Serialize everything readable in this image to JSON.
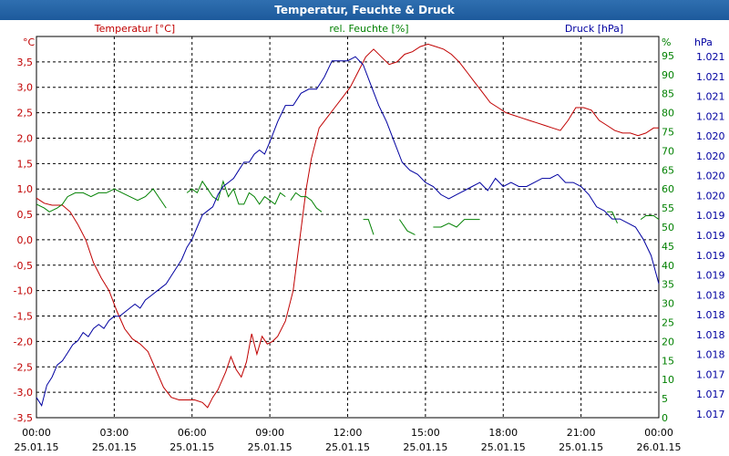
{
  "window": {
    "title": "Temperatur, Feuchte & Druck"
  },
  "colors": {
    "temperature": "#c00000",
    "humidity": "#008000",
    "pressure": "#0000a0",
    "grid": "#000000"
  },
  "chart_data": {
    "type": "line",
    "title": "Temperatur, Feuchte & Druck",
    "x_range_hours": [
      0,
      24
    ],
    "x_ticks": [
      {
        "h": 0,
        "time": "00:00",
        "date": "25.01.15"
      },
      {
        "h": 3,
        "time": "03:00",
        "date": "25.01.15"
      },
      {
        "h": 6,
        "time": "06:00",
        "date": "25.01.15"
      },
      {
        "h": 9,
        "time": "09:00",
        "date": "25.01.15"
      },
      {
        "h": 12,
        "time": "12:00",
        "date": "25.01.15"
      },
      {
        "h": 15,
        "time": "15:00",
        "date": "25.01.15"
      },
      {
        "h": 18,
        "time": "18:00",
        "date": "25.01.15"
      },
      {
        "h": 21,
        "time": "21:00",
        "date": "25.01.15"
      },
      {
        "h": 24,
        "time": "00:00",
        "date": "26.01.15"
      }
    ],
    "axes": {
      "temperature": {
        "unit": "°C",
        "label": "Temperatur [°C]",
        "range": [
          -3.5,
          4.0
        ],
        "ticks": [
          "-3,5",
          "-3,0",
          "-2,5",
          "-2,0",
          "-1,5",
          "-1,0",
          "-0,5",
          "0,0",
          "0,5",
          "1,0",
          "1,5",
          "2,0",
          "2,5",
          "3,0",
          "3,5"
        ]
      },
      "humidity": {
        "unit": "%",
        "label": "rel. Feuchte [%]",
        "range": [
          0,
          100
        ],
        "ticks": [
          "0",
          "5",
          "10",
          "15",
          "20",
          "25",
          "30",
          "35",
          "40",
          "45",
          "50",
          "55",
          "60",
          "65",
          "70",
          "75",
          "80",
          "85",
          "90",
          "95"
        ]
      },
      "pressure": {
        "unit": "hPa",
        "label": "Druck [hPa]",
        "range": [
          1016.7,
          1021.4
        ],
        "ticks": [
          "1.017",
          "1.017",
          "1.017",
          "1.018",
          "1.018",
          "1.018",
          "1.018",
          "1.019",
          "1.019",
          "1.019",
          "1.019",
          "1.020",
          "1.020",
          "1.020",
          "1.020",
          "1.021",
          "1.021",
          "1.021",
          "1.021"
        ]
      }
    },
    "series": [
      {
        "name": "Temperatur",
        "axis": "temperature",
        "points": [
          [
            0.0,
            0.82
          ],
          [
            0.3,
            0.72
          ],
          [
            0.6,
            0.68
          ],
          [
            1.0,
            0.68
          ],
          [
            1.3,
            0.55
          ],
          [
            1.6,
            0.3
          ],
          [
            1.9,
            0.0
          ],
          [
            2.2,
            -0.45
          ],
          [
            2.5,
            -0.75
          ],
          [
            2.8,
            -1.0
          ],
          [
            3.1,
            -1.4
          ],
          [
            3.4,
            -1.75
          ],
          [
            3.7,
            -1.95
          ],
          [
            4.0,
            -2.05
          ],
          [
            4.3,
            -2.2
          ],
          [
            4.6,
            -2.55
          ],
          [
            4.9,
            -2.9
          ],
          [
            5.2,
            -3.1
          ],
          [
            5.5,
            -3.15
          ],
          [
            5.8,
            -3.15
          ],
          [
            6.1,
            -3.15
          ],
          [
            6.4,
            -3.2
          ],
          [
            6.6,
            -3.3
          ],
          [
            6.8,
            -3.1
          ],
          [
            7.0,
            -2.95
          ],
          [
            7.3,
            -2.6
          ],
          [
            7.5,
            -2.3
          ],
          [
            7.7,
            -2.55
          ],
          [
            7.9,
            -2.7
          ],
          [
            8.1,
            -2.4
          ],
          [
            8.3,
            -1.85
          ],
          [
            8.5,
            -2.25
          ],
          [
            8.7,
            -1.9
          ],
          [
            8.9,
            -2.05
          ],
          [
            9.1,
            -2.0
          ],
          [
            9.3,
            -1.9
          ],
          [
            9.6,
            -1.6
          ],
          [
            9.9,
            -1.0
          ],
          [
            10.2,
            0.2
          ],
          [
            10.4,
            1.0
          ],
          [
            10.6,
            1.6
          ],
          [
            10.9,
            2.2
          ],
          [
            11.2,
            2.4
          ],
          [
            11.5,
            2.6
          ],
          [
            11.8,
            2.8
          ],
          [
            12.1,
            3.0
          ],
          [
            12.4,
            3.3
          ],
          [
            12.7,
            3.6
          ],
          [
            13.0,
            3.75
          ],
          [
            13.3,
            3.6
          ],
          [
            13.6,
            3.45
          ],
          [
            13.9,
            3.5
          ],
          [
            14.2,
            3.65
          ],
          [
            14.5,
            3.7
          ],
          [
            14.8,
            3.8
          ],
          [
            15.1,
            3.85
          ],
          [
            15.4,
            3.8
          ],
          [
            15.7,
            3.75
          ],
          [
            16.0,
            3.65
          ],
          [
            16.3,
            3.5
          ],
          [
            16.6,
            3.3
          ],
          [
            16.9,
            3.1
          ],
          [
            17.2,
            2.9
          ],
          [
            17.5,
            2.7
          ],
          [
            17.8,
            2.6
          ],
          [
            18.1,
            2.5
          ],
          [
            18.4,
            2.45
          ],
          [
            18.7,
            2.4
          ],
          [
            19.0,
            2.35
          ],
          [
            19.3,
            2.3
          ],
          [
            19.6,
            2.25
          ],
          [
            19.9,
            2.2
          ],
          [
            20.2,
            2.15
          ],
          [
            20.5,
            2.35
          ],
          [
            20.8,
            2.6
          ],
          [
            21.1,
            2.6
          ],
          [
            21.4,
            2.55
          ],
          [
            21.7,
            2.35
          ],
          [
            22.0,
            2.25
          ],
          [
            22.3,
            2.15
          ],
          [
            22.6,
            2.1
          ],
          [
            22.9,
            2.1
          ],
          [
            23.2,
            2.05
          ],
          [
            23.5,
            2.1
          ],
          [
            23.8,
            2.2
          ],
          [
            24.0,
            2.2
          ]
        ]
      },
      {
        "name": "rel. Feuchte",
        "axis": "humidity",
        "segments": [
          [
            [
              0.0,
              56
            ],
            [
              0.3,
              55
            ],
            [
              0.5,
              54
            ],
            [
              0.8,
              55
            ],
            [
              1.0,
              56
            ],
            [
              1.2,
              58
            ],
            [
              1.5,
              59
            ],
            [
              1.8,
              59
            ],
            [
              2.1,
              58
            ],
            [
              2.4,
              59
            ],
            [
              2.7,
              59
            ],
            [
              3.0,
              60
            ],
            [
              3.3,
              59
            ],
            [
              3.6,
              58
            ],
            [
              3.9,
              57
            ],
            [
              4.2,
              58
            ],
            [
              4.5,
              60
            ],
            [
              4.7,
              58
            ],
            [
              5.0,
              55
            ]
          ],
          [
            [
              5.8,
              59
            ],
            [
              6.0,
              60
            ],
            [
              6.2,
              59
            ],
            [
              6.4,
              62
            ],
            [
              6.6,
              60
            ],
            [
              6.8,
              58
            ],
            [
              7.0,
              57
            ],
            [
              7.2,
              62
            ],
            [
              7.4,
              58
            ],
            [
              7.6,
              60
            ],
            [
              7.8,
              56
            ],
            [
              8.0,
              56
            ],
            [
              8.2,
              59
            ],
            [
              8.4,
              58
            ],
            [
              8.6,
              56
            ],
            [
              8.8,
              58
            ],
            [
              9.0,
              57
            ],
            [
              9.2,
              56
            ],
            [
              9.4,
              59
            ],
            [
              9.6,
              58
            ]
          ],
          [
            [
              9.8,
              57
            ],
            [
              10.0,
              59
            ],
            [
              10.2,
              58
            ],
            [
              10.4,
              58
            ],
            [
              10.6,
              57
            ],
            [
              10.8,
              55
            ],
            [
              11.0,
              54
            ]
          ],
          [
            [
              12.6,
              52
            ],
            [
              12.8,
              52
            ],
            [
              13.0,
              48
            ]
          ],
          [
            [
              14.0,
              52
            ],
            [
              14.3,
              49
            ],
            [
              14.6,
              48
            ]
          ],
          [
            [
              15.3,
              50
            ],
            [
              15.6,
              50
            ],
            [
              15.9,
              51
            ],
            [
              16.2,
              50
            ],
            [
              16.5,
              52
            ],
            [
              16.8,
              52
            ],
            [
              17.1,
              52
            ]
          ],
          [
            [
              22.0,
              54
            ],
            [
              22.2,
              54
            ],
            [
              22.4,
              51
            ]
          ],
          [
            [
              23.3,
              52
            ],
            [
              23.5,
              53
            ],
            [
              23.8,
              53
            ],
            [
              24.0,
              52
            ]
          ]
        ]
      },
      {
        "name": "Druck",
        "axis": "pressure",
        "points": [
          [
            0.0,
            1016.95
          ],
          [
            0.2,
            1016.85
          ],
          [
            0.4,
            1017.1
          ],
          [
            0.6,
            1017.2
          ],
          [
            0.8,
            1017.35
          ],
          [
            1.0,
            1017.4
          ],
          [
            1.2,
            1017.5
          ],
          [
            1.4,
            1017.6
          ],
          [
            1.6,
            1017.65
          ],
          [
            1.8,
            1017.75
          ],
          [
            2.0,
            1017.7
          ],
          [
            2.2,
            1017.8
          ],
          [
            2.4,
            1017.85
          ],
          [
            2.6,
            1017.8
          ],
          [
            2.8,
            1017.9
          ],
          [
            3.0,
            1017.95
          ],
          [
            3.2,
            1017.95
          ],
          [
            3.4,
            1018.0
          ],
          [
            3.6,
            1018.05
          ],
          [
            3.8,
            1018.1
          ],
          [
            4.0,
            1018.05
          ],
          [
            4.2,
            1018.15
          ],
          [
            4.4,
            1018.2
          ],
          [
            4.6,
            1018.25
          ],
          [
            4.8,
            1018.3
          ],
          [
            5.0,
            1018.35
          ],
          [
            5.2,
            1018.45
          ],
          [
            5.4,
            1018.55
          ],
          [
            5.6,
            1018.65
          ],
          [
            5.8,
            1018.8
          ],
          [
            6.0,
            1018.9
          ],
          [
            6.2,
            1019.05
          ],
          [
            6.4,
            1019.2
          ],
          [
            6.6,
            1019.25
          ],
          [
            6.8,
            1019.3
          ],
          [
            7.0,
            1019.45
          ],
          [
            7.2,
            1019.55
          ],
          [
            7.4,
            1019.6
          ],
          [
            7.6,
            1019.65
          ],
          [
            7.8,
            1019.75
          ],
          [
            8.0,
            1019.85
          ],
          [
            8.2,
            1019.85
          ],
          [
            8.4,
            1019.95
          ],
          [
            8.6,
            1020.0
          ],
          [
            8.8,
            1019.95
          ],
          [
            9.0,
            1020.1
          ],
          [
            9.3,
            1020.35
          ],
          [
            9.6,
            1020.55
          ],
          [
            9.9,
            1020.55
          ],
          [
            10.2,
            1020.7
          ],
          [
            10.5,
            1020.75
          ],
          [
            10.8,
            1020.75
          ],
          [
            11.1,
            1020.9
          ],
          [
            11.4,
            1021.1
          ],
          [
            11.7,
            1021.1
          ],
          [
            12.0,
            1021.1
          ],
          [
            12.3,
            1021.15
          ],
          [
            12.6,
            1021.05
          ],
          [
            12.9,
            1020.8
          ],
          [
            13.2,
            1020.55
          ],
          [
            13.5,
            1020.35
          ],
          [
            13.8,
            1020.1
          ],
          [
            14.1,
            1019.85
          ],
          [
            14.4,
            1019.75
          ],
          [
            14.7,
            1019.7
          ],
          [
            15.0,
            1019.6
          ],
          [
            15.3,
            1019.55
          ],
          [
            15.6,
            1019.45
          ],
          [
            15.9,
            1019.4
          ],
          [
            16.2,
            1019.45
          ],
          [
            16.5,
            1019.5
          ],
          [
            16.8,
            1019.55
          ],
          [
            17.1,
            1019.6
          ],
          [
            17.4,
            1019.5
          ],
          [
            17.7,
            1019.65
          ],
          [
            18.0,
            1019.55
          ],
          [
            18.3,
            1019.6
          ],
          [
            18.6,
            1019.55
          ],
          [
            18.9,
            1019.55
          ],
          [
            19.2,
            1019.6
          ],
          [
            19.5,
            1019.65
          ],
          [
            19.8,
            1019.65
          ],
          [
            20.1,
            1019.7
          ],
          [
            20.4,
            1019.6
          ],
          [
            20.7,
            1019.6
          ],
          [
            21.0,
            1019.55
          ],
          [
            21.3,
            1019.45
          ],
          [
            21.6,
            1019.3
          ],
          [
            21.9,
            1019.25
          ],
          [
            22.2,
            1019.15
          ],
          [
            22.5,
            1019.15
          ],
          [
            22.8,
            1019.1
          ],
          [
            23.1,
            1019.05
          ],
          [
            23.4,
            1018.9
          ],
          [
            23.7,
            1018.7
          ],
          [
            24.0,
            1018.35
          ]
        ]
      }
    ]
  }
}
